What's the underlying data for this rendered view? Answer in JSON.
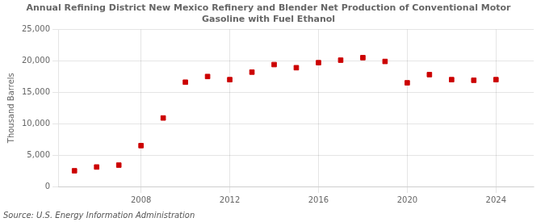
{
  "chart_data": {
    "type": "scatter",
    "title": "Annual Refining District New Mexico Refinery and Blender Net Production of Conventional Motor\nGasoline with Fuel Ethanol",
    "ylabel": "Thousand Barrels",
    "annotations": [
      "Source: U.S. Energy Information Administration"
    ],
    "color": "#cc0000",
    "marker": "square",
    "x": [
      2005,
      2006,
      2007,
      2008,
      2009,
      2010,
      2011,
      2012,
      2013,
      2014,
      2015,
      2016,
      2017,
      2018,
      2019,
      2020,
      2021,
      2022,
      2023,
      2024
    ],
    "values": [
      2500,
      3100,
      3400,
      6500,
      10900,
      16600,
      17500,
      17000,
      18200,
      19400,
      18900,
      19700,
      20100,
      20500,
      19900,
      16500,
      17800,
      17000,
      16900,
      17000
    ],
    "xlim": [
      2004.3,
      2025.7
    ],
    "xticks": [
      2008,
      2012,
      2016,
      2020,
      2024
    ],
    "ylim": [
      0,
      25000
    ],
    "yticks": [
      0,
      {
        "value": 5000,
        "label": "5,000"
      },
      {
        "value": 10000,
        "label": "10,000"
      },
      {
        "value": 15000,
        "label": "15,000"
      },
      {
        "value": 20000,
        "label": "20,000"
      },
      {
        "value": 25000,
        "label": "25,000"
      }
    ],
    "grid": true
  }
}
